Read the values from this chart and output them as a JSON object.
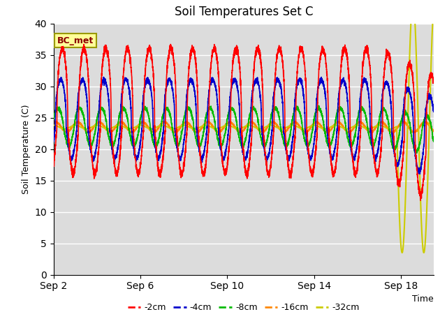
{
  "title": "Soil Temperatures Set C",
  "xlabel": "Time",
  "ylabel": "Soil Temperature (C)",
  "ylim": [
    0,
    40
  ],
  "annotation": "BC_met",
  "colors": {
    "-2cm": "#ff0000",
    "-4cm": "#0000cc",
    "-8cm": "#00bb00",
    "-16cm": "#ff8800",
    "-32cm": "#cccc00"
  },
  "legend_labels": [
    "-2cm",
    "-4cm",
    "-8cm",
    "-16cm",
    "-32cm"
  ],
  "xtick_labels": [
    "Sep 2",
    "Sep 6",
    "Sep 10",
    "Sep 14",
    "Sep 18"
  ],
  "xtick_positions": [
    0,
    4,
    8,
    12,
    16
  ],
  "plot_bg": "#dcdcdc",
  "fig_bg": "#ffffff",
  "mean_temp": 23.5,
  "period_hours": 24,
  "total_days": 18.5,
  "xlim": [
    0,
    17.5
  ]
}
